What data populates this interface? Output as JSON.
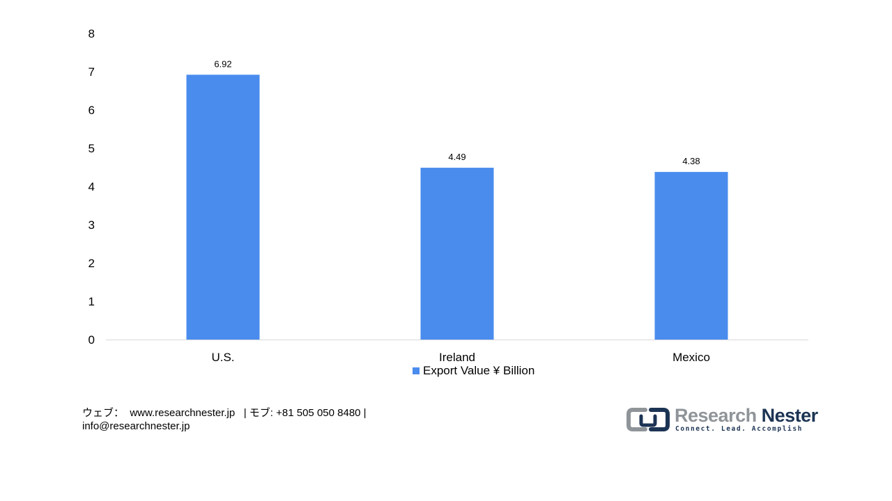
{
  "chart_data": {
    "type": "bar",
    "categories": [
      "U.S.",
      "Ireland",
      "Mexico"
    ],
    "series": [
      {
        "name": "Export Value ¥ Billion",
        "values": [
          6.92,
          4.49,
          4.38
        ]
      }
    ],
    "data_labels": [
      "6.92",
      "4.49",
      "4.38"
    ],
    "y_ticks": [
      "0",
      "1",
      "2",
      "3",
      "4",
      "5",
      "6",
      "7",
      "8"
    ],
    "ylim": [
      0,
      8
    ],
    "title": "",
    "xlabel": "",
    "ylabel": "",
    "grid": false,
    "legend_position": "bottom",
    "bar_color": "#4a8cee",
    "axis_color": "#d9d9d9"
  },
  "legend": {
    "label": "Export Value ¥ Billion"
  },
  "footer": {
    "contact_line1": "ウェブ：  www.researchnester.jp   | モブ: +81 505 050 8480 |",
    "contact_line2": "info@researchnester.jp"
  },
  "logo": {
    "name_part1": "Research",
    "name_part2": "Nester",
    "tagline": "Connect. Lead. Accomplish",
    "mark_icon": "research-nester-logo-icon",
    "primary_color": "#1c3454",
    "secondary_color": "#8f9499"
  }
}
